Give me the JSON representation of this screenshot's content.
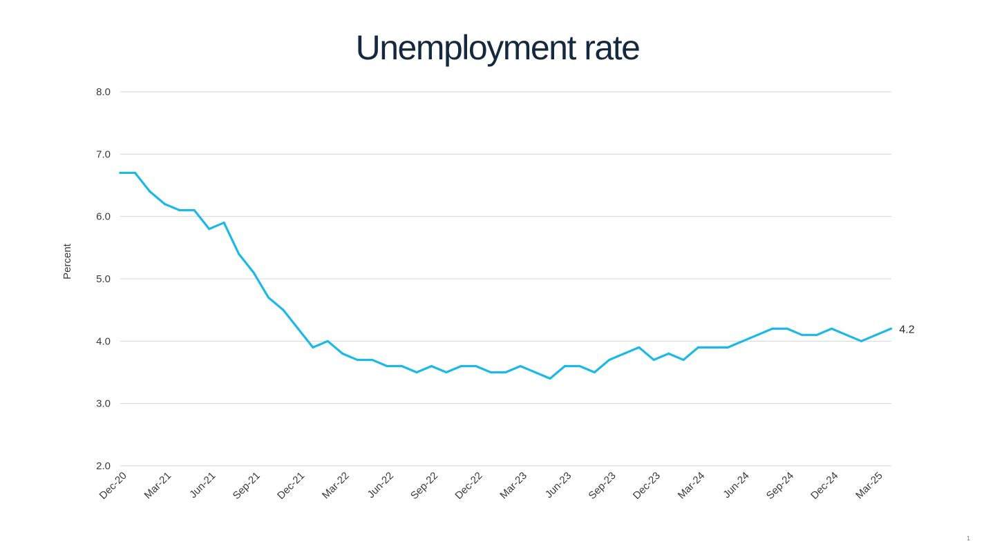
{
  "chart_data": {
    "type": "line",
    "title": "Unemployment rate",
    "xlabel": "",
    "ylabel": "Percent",
    "ylim": [
      2.0,
      8.0
    ],
    "yticks": [
      "2.0",
      "3.0",
      "4.0",
      "5.0",
      "6.0",
      "7.0",
      "8.0"
    ],
    "x_tick_labels": [
      "Dec-20",
      "Mar-21",
      "Jun-21",
      "Sep-21",
      "Dec-21",
      "Mar-22",
      "Jun-22",
      "Sep-22",
      "Dec-22",
      "Mar-23",
      "Jun-23",
      "Sep-23",
      "Dec-23",
      "Mar-24",
      "Jun-24",
      "Sep-24",
      "Dec-24",
      "Mar-25"
    ],
    "grid": true,
    "series": [
      {
        "name": "Unemployment rate",
        "color": "#1cb8e6",
        "start": "Dec-20",
        "end": "Mar-25",
        "frequency": "monthly",
        "values": [
          6.7,
          6.7,
          6.4,
          6.2,
          6.1,
          6.1,
          5.8,
          5.9,
          5.4,
          5.1,
          4.7,
          4.5,
          4.2,
          3.9,
          4.0,
          3.8,
          3.7,
          3.7,
          3.6,
          3.6,
          3.5,
          3.6,
          3.5,
          3.6,
          3.6,
          3.5,
          3.5,
          3.6,
          3.5,
          3.4,
          3.6,
          3.6,
          3.5,
          3.7,
          3.8,
          3.9,
          3.7,
          3.8,
          3.7,
          3.9,
          3.9,
          3.9,
          4.0,
          4.1,
          4.2,
          4.2,
          4.1,
          4.1,
          4.2,
          4.1,
          4.0,
          4.1,
          4.2
        ]
      }
    ],
    "end_label": "4.2"
  },
  "page_number": "1"
}
